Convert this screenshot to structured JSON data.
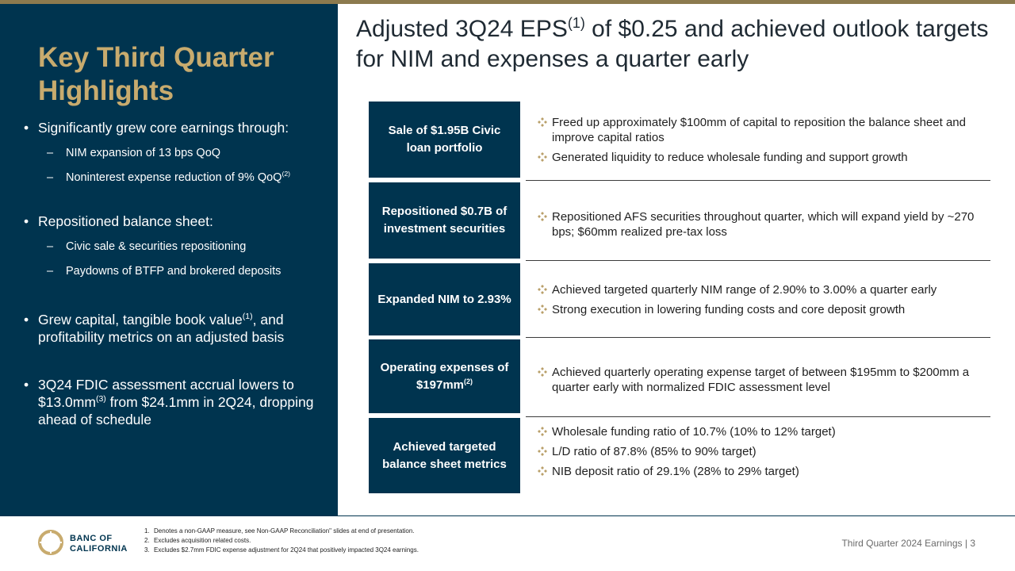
{
  "left_panel": {
    "title": "Key Third Quarter Highlights",
    "bullets": [
      {
        "text": "Significantly grew core earnings through:",
        "subs": [
          {
            "text": "NIM expansion of 13 bps QoQ",
            "sup": ""
          },
          {
            "text": "Noninterest expense reduction of 9% QoQ",
            "sup": "(2)"
          }
        ]
      },
      {
        "text": "Repositioned balance sheet:",
        "subs": [
          {
            "text": "Civic sale & securities repositioning",
            "sup": ""
          },
          {
            "text": "Paydowns of BTFP and brokered deposits",
            "sup": ""
          }
        ]
      },
      {
        "text_a": "Grew capital, tangible book value",
        "sup": "(1)",
        "text_b": ", and profitability metrics on an adjusted basis"
      },
      {
        "text_a": "3Q24 FDIC assessment accrual lowers to $13.0mm",
        "sup": "(3)",
        "text_b": " from $24.1mm in 2Q24, dropping ahead of schedule"
      }
    ]
  },
  "heading": {
    "part_a": "Adjusted 3Q24 EPS",
    "sup": "(1)",
    "part_b": " of $0.25 and achieved outlook targets for NIM and expenses a quarter early"
  },
  "rows": [
    {
      "label_lines": [
        "Sale of $1.95B Civic",
        "loan portfolio"
      ],
      "items": [
        "Freed up approximately $100mm of capital to reposition the balance sheet and improve capital ratios",
        "Generated liquidity to reduce wholesale funding and support growth"
      ]
    },
    {
      "label_lines": [
        "Repositioned $0.7B of",
        "investment securities"
      ],
      "items": [
        "Repositioned AFS securities throughout quarter, which will expand yield by ~270 bps; $60mm realized pre-tax loss"
      ]
    },
    {
      "label_lines": [
        "Expanded NIM to 2.93%"
      ],
      "items": [
        "Achieved targeted quarterly NIM range of 2.90% to 3.00% a quarter early",
        "Strong execution in lowering funding costs and core deposit growth"
      ]
    },
    {
      "label_line1": "Operating expenses of",
      "label_line2": "$197mm",
      "label_sup": "(2)",
      "items": [
        "Achieved quarterly operating expense target of between $195mm to $200mm a quarter early with normalized FDIC assessment level"
      ]
    },
    {
      "label_lines": [
        "Achieved targeted",
        "balance sheet metrics"
      ],
      "items": [
        "Wholesale funding ratio of 10.7% (10% to 12% target)",
        "L/D ratio of 87.8% (85% to 90% target)",
        "NIB deposit ratio of 29.1% (28% to 29% target)"
      ]
    }
  ],
  "footer": {
    "logo_line1": "BANC OF",
    "logo_line2": "CALIFORNIA",
    "notes": [
      {
        "num": "1.",
        "text": "Denotes a non-GAAP measure, see Non-GAAP Reconciliation\" slides at end of presentation."
      },
      {
        "num": "2.",
        "text": "Excludes acquisition related costs."
      },
      {
        "num": "3.",
        "text": "Excludes $2.7mm FDIC expense adjustment for 2Q24 that positively impacted 3Q24 earnings."
      }
    ],
    "right_text": "Third Quarter 2024 Earnings |  3"
  },
  "colors": {
    "navy": "#00344f",
    "gold": "#c8ab6e",
    "diamond": "#b9a06a"
  },
  "icons": {
    "bullet_marker": "diamond-bullet-icon",
    "logo": "banc-of-california-logo-icon"
  }
}
